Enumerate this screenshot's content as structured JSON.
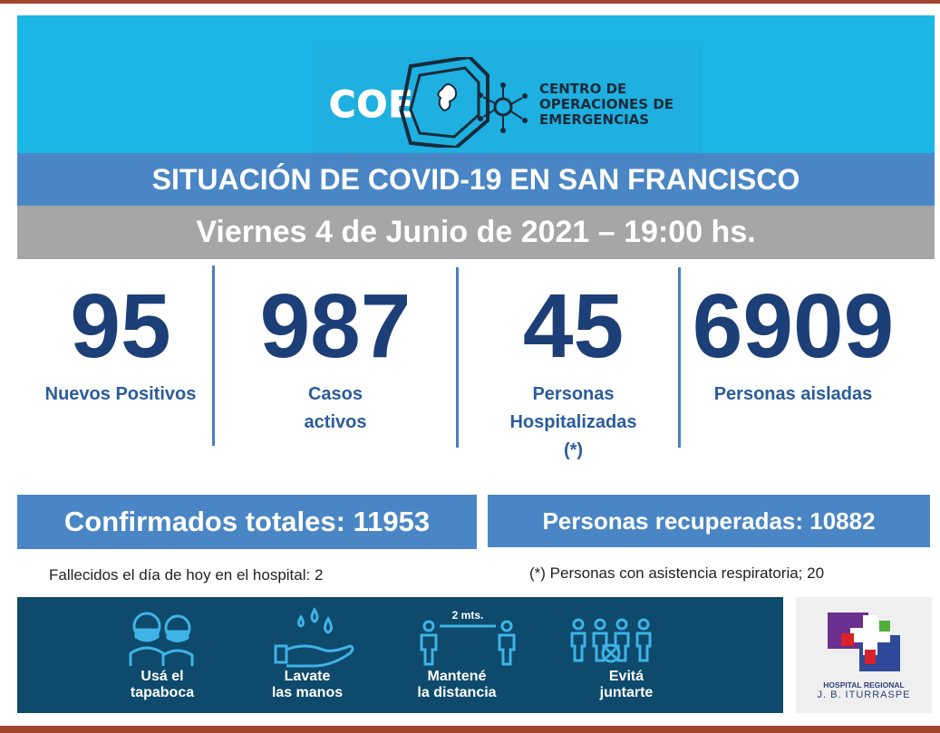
{
  "header": {
    "logo_abbr": "COE",
    "logo_lines": [
      "CENTRO DE",
      "OPERACIONES DE",
      "EMERGENCIAS"
    ],
    "title": "SITUACIÓN DE COVID-19 EN SAN FRANCISCO",
    "date": "Viernes 4 de Junio de 2021 – 19:00 hs."
  },
  "stats": [
    {
      "value": "95",
      "label_lines": [
        "Nuevos Positivos"
      ]
    },
    {
      "value": "987",
      "label_lines": [
        "Casos",
        "activos"
      ]
    },
    {
      "value": "45",
      "label_lines": [
        "Personas",
        "Hospitalizadas",
        "(*)"
      ]
    },
    {
      "value": "6909",
      "label_lines": [
        "Personas aisladas"
      ]
    }
  ],
  "totals": {
    "confirmed": "Confirmados totales: 11953",
    "recovered": "Personas recuperadas: 10882"
  },
  "notes": {
    "deaths": "Fallecidos el día de hoy en el hospital: 2",
    "respiratory": "(*) Personas con asistencia respiratoria; 20"
  },
  "measures": [
    {
      "icon": "face-mask-icon",
      "lines": [
        "Usá el",
        "tapaboca"
      ]
    },
    {
      "icon": "hand-wash-icon",
      "lines": [
        "Lavate",
        "las manos"
      ]
    },
    {
      "icon": "social-distance-icon",
      "lines": [
        "Mantené",
        "la distancia"
      ],
      "distance_label": "2 mts."
    },
    {
      "icon": "no-gathering-icon",
      "lines": [
        "Evitá",
        "juntarte"
      ]
    }
  ],
  "hospital": {
    "lines": [
      "HOSPITAL REGIONAL",
      "J. B. ITURRASPE"
    ]
  },
  "colors": {
    "banner": "#1bb6e6",
    "title_bar": "#4a86c5",
    "date_bar": "#a6a6a6",
    "number": "#1c3f78",
    "label": "#2b5c9a",
    "measures_bg": "#0e4a6c",
    "frame": "#a0452e"
  }
}
